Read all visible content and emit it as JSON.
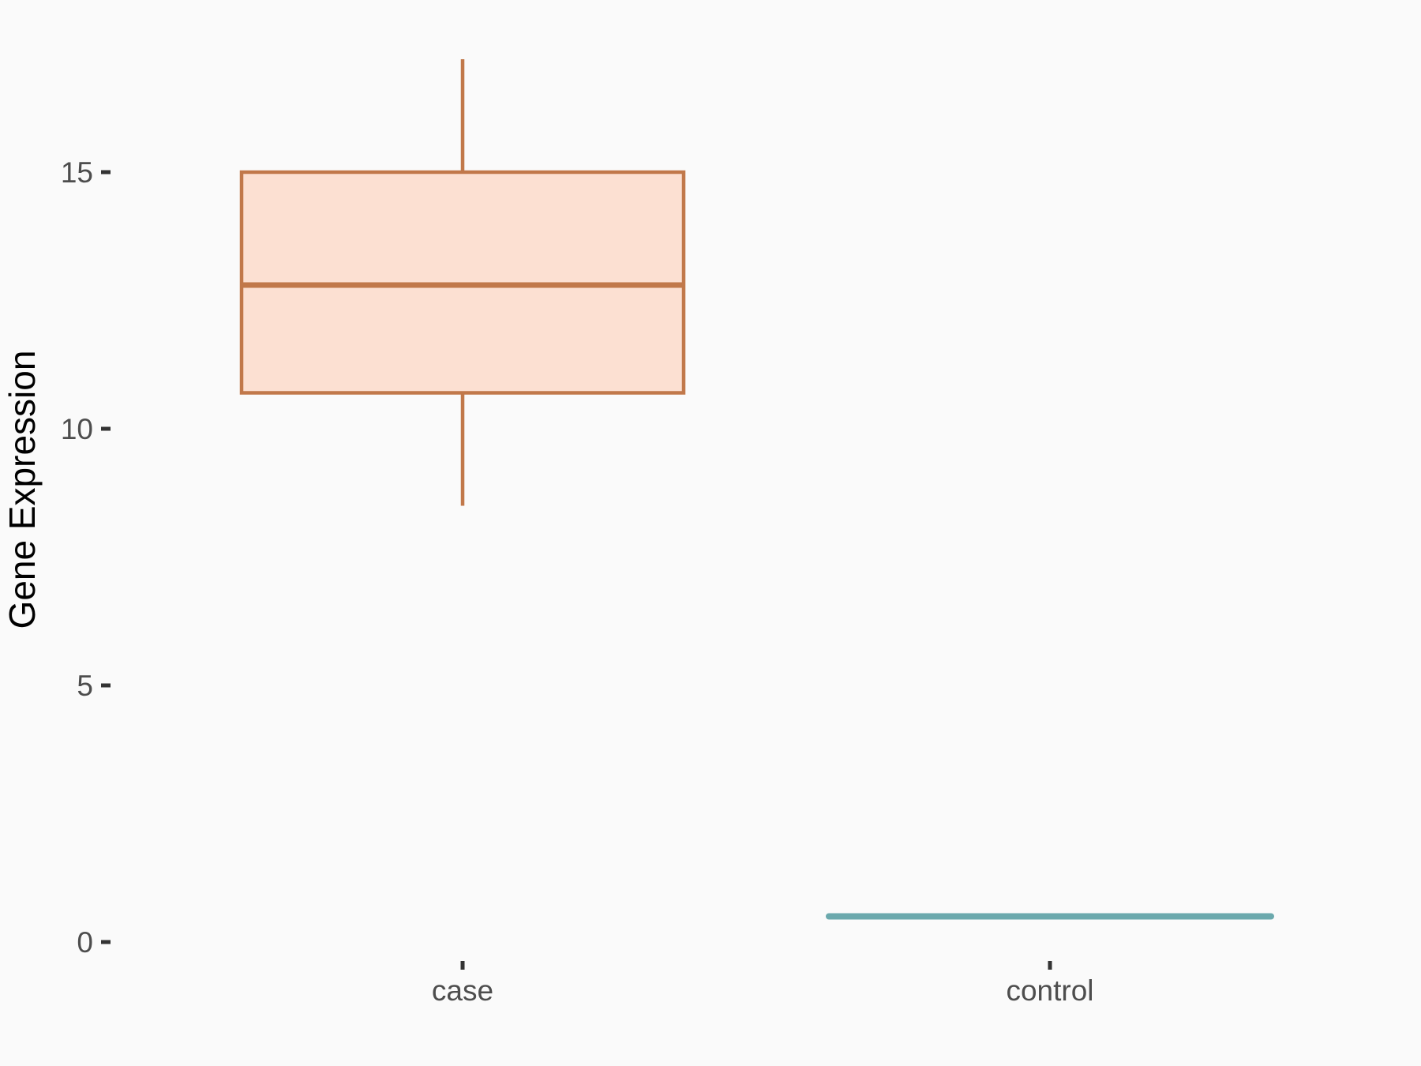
{
  "figure": {
    "background_color": "#fafafa"
  },
  "style": {
    "tick_mark_color": "#333333",
    "tick_label_color": "#4d4d4d",
    "axis_title_color": "#000000"
  },
  "chart_data": {
    "type": "boxplot",
    "title": "",
    "xlabel": "",
    "ylabel": "Gene Expression",
    "categories": [
      "case",
      "control"
    ],
    "yticks": [
      0,
      5,
      10,
      15
    ],
    "ylim": [
      -2.4,
      18.3
    ],
    "grid": false,
    "legend": "none",
    "series": [
      {
        "name": "case",
        "whisker_low": 8.5,
        "q1": 10.7,
        "median": 12.8,
        "q3": 15.0,
        "whisker_high": 17.2,
        "fill": "#fce0d2",
        "stroke": "#c1784a"
      },
      {
        "name": "control",
        "whisker_low": 0.5,
        "q1": 0.5,
        "median": 0.5,
        "q3": 0.5,
        "whisker_high": 0.5,
        "stroke": "#6ba9ad"
      }
    ]
  }
}
